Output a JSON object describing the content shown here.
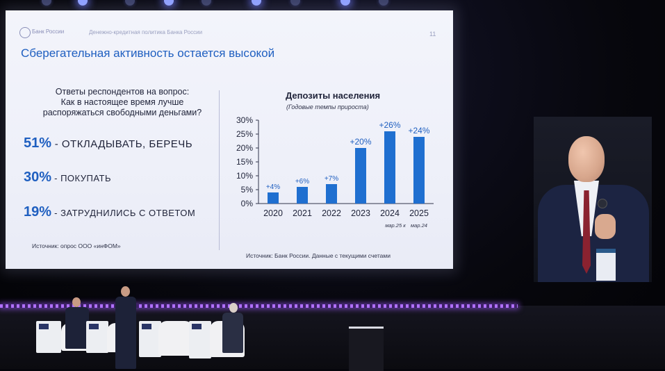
{
  "slide": {
    "bank_name": "Банк России",
    "header_text": "Денежно-кредитная политика Банка России",
    "page_number": "11",
    "title": "Сберегательная активность остается высокой",
    "survey": {
      "question_line1": "Ответы респондентов на вопрос:",
      "question_line2": "Как в настоящее время лучше",
      "question_line3": "распоряжаться свободными деньгами?",
      "answers": [
        {
          "pct": "51%",
          "label": " - ОТКЛАДЫВАТЬ, БЕРЕЧЬ"
        },
        {
          "pct": "30%",
          "label": " - ПОКУПАТЬ"
        },
        {
          "pct": "19%",
          "label": " - ЗАТРУДНИЛИСЬ С ОТВЕТОМ"
        }
      ],
      "source": "Источник: опрос ООО «инФОМ»"
    },
    "chart_source": "Источник: Банк России. Данные с текущими счетами"
  },
  "chart_data": {
    "type": "bar",
    "title": "Депозиты населения",
    "subtitle": "(Годовые темпы прироста)",
    "categories": [
      "2020",
      "2021",
      "2022",
      "2023",
      "2024",
      "2025"
    ],
    "values": [
      4,
      6,
      7,
      20,
      26,
      24
    ],
    "data_labels": [
      "+4%",
      "+6%",
      "+7%",
      "+20%",
      "+26%",
      "+24%"
    ],
    "yticks": [
      "0%",
      "5%",
      "10%",
      "15%",
      "20%",
      "25%",
      "30%"
    ],
    "ylim": [
      0,
      30
    ],
    "footnotes": [
      "мар.25 к",
      "мар.24"
    ],
    "bar_color": "#1f6fd0",
    "label_color": "#1f5fc0"
  }
}
